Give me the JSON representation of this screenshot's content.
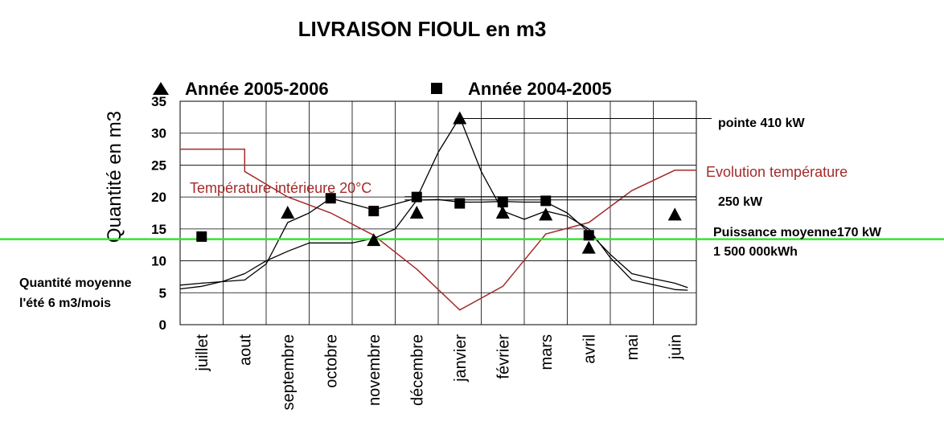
{
  "chart_data": {
    "type": "line",
    "title": "LIVRAISON FIOUL en m3",
    "ylabel": "Quantité en m3",
    "ylim": [
      0,
      35
    ],
    "yticks": [
      "0",
      "5",
      "10",
      "15",
      "20",
      "25",
      "30",
      "35"
    ],
    "categories": [
      "juillet",
      "aout",
      "septembre",
      "octobre",
      "novembre",
      "décembre",
      "janvier",
      "février",
      "mars",
      "avril",
      "mai",
      "juin"
    ],
    "grid": true,
    "legend_position": "top",
    "series": [
      {
        "name": "Année 2005-2006",
        "marker": "triangle",
        "values": [
          null,
          null,
          17.5,
          null,
          13.2,
          17.5,
          32.3,
          17.5,
          17.2,
          12.0,
          null,
          17.2
        ]
      },
      {
        "name": "Année 2004-2005",
        "marker": "square",
        "values": [
          13.8,
          null,
          null,
          19.8,
          17.8,
          20.0,
          19.0,
          19.2,
          19.4,
          14.0,
          null,
          null
        ]
      }
    ],
    "curve_2005_2006": [
      [
        -0.5,
        6.2
      ],
      [
        0,
        6.5
      ],
      [
        1,
        7.0
      ],
      [
        1.5,
        9.5
      ],
      [
        2,
        16.0
      ],
      [
        2.5,
        17.5
      ],
      [
        3,
        19.8
      ],
      [
        4,
        18.0
      ],
      [
        5,
        19.8
      ],
      [
        5.5,
        27.0
      ],
      [
        6,
        32.5
      ],
      [
        6.5,
        24.0
      ],
      [
        7,
        17.8
      ],
      [
        7.5,
        16.5
      ],
      [
        8,
        17.8
      ],
      [
        8.5,
        17.0
      ],
      [
        9,
        15.0
      ],
      [
        9.5,
        10.5
      ],
      [
        10,
        7.0
      ],
      [
        11,
        5.5
      ],
      [
        11.3,
        5.4
      ]
    ],
    "curve_2004_2005": [
      [
        -0.5,
        5.6
      ],
      [
        0,
        6.0
      ],
      [
        0.5,
        6.8
      ],
      [
        1,
        8.0
      ],
      [
        1.5,
        10.0
      ],
      [
        2,
        11.5
      ],
      [
        2.5,
        12.8
      ],
      [
        3,
        12.8
      ],
      [
        3.5,
        12.8
      ],
      [
        4,
        13.5
      ],
      [
        4.5,
        15.0
      ],
      [
        5,
        19.5
      ],
      [
        5.5,
        19.6
      ],
      [
        6,
        19.2
      ],
      [
        6.5,
        19.2
      ],
      [
        7,
        19.3
      ],
      [
        7.5,
        19.2
      ],
      [
        8,
        19.2
      ],
      [
        8.5,
        17.5
      ],
      [
        9,
        14.5
      ],
      [
        9.5,
        11.0
      ],
      [
        10,
        8.0
      ],
      [
        10.5,
        7.2
      ],
      [
        11,
        6.5
      ],
      [
        11.3,
        5.8
      ]
    ],
    "temperature_steps": [
      [
        -0.5,
        27.5
      ],
      [
        1,
        27.5
      ],
      [
        1,
        24.0
      ],
      [
        2,
        20.0
      ],
      [
        3,
        17.5
      ],
      [
        4,
        14.0
      ],
      [
        5,
        8.7
      ],
      [
        6,
        2.3
      ],
      [
        7,
        6.0
      ],
      [
        8,
        14.2
      ],
      [
        9,
        16.0
      ],
      [
        10,
        21.0
      ],
      [
        11,
        24.2
      ],
      [
        11.5,
        24.2
      ]
    ],
    "reference_lines": [
      {
        "label": "250 kW",
        "value": 19.8
      },
      {
        "label": "Puissance moyenne170 kW",
        "value": 13.4
      },
      {
        "label": "pointe 410 kW",
        "value": 32.3
      }
    ],
    "annotations": {
      "pointe": "pointe 410 kW",
      "kw250": "250 kW",
      "puissance_moyenne": "Puissance moyenne170 kW",
      "kwh": "1 500 000kWh",
      "evolution": "Evolution température",
      "temperature_interieure": "Température intérieure 20°C",
      "quantite_moyenne_1": "Quantité moyenne",
      "quantite_moyenne_2": "l'été 6 m3/mois"
    },
    "colors": {
      "temperature": "#a52a2a",
      "average_line": "#33e633",
      "curves": "#000000",
      "grid": "#000000"
    }
  }
}
